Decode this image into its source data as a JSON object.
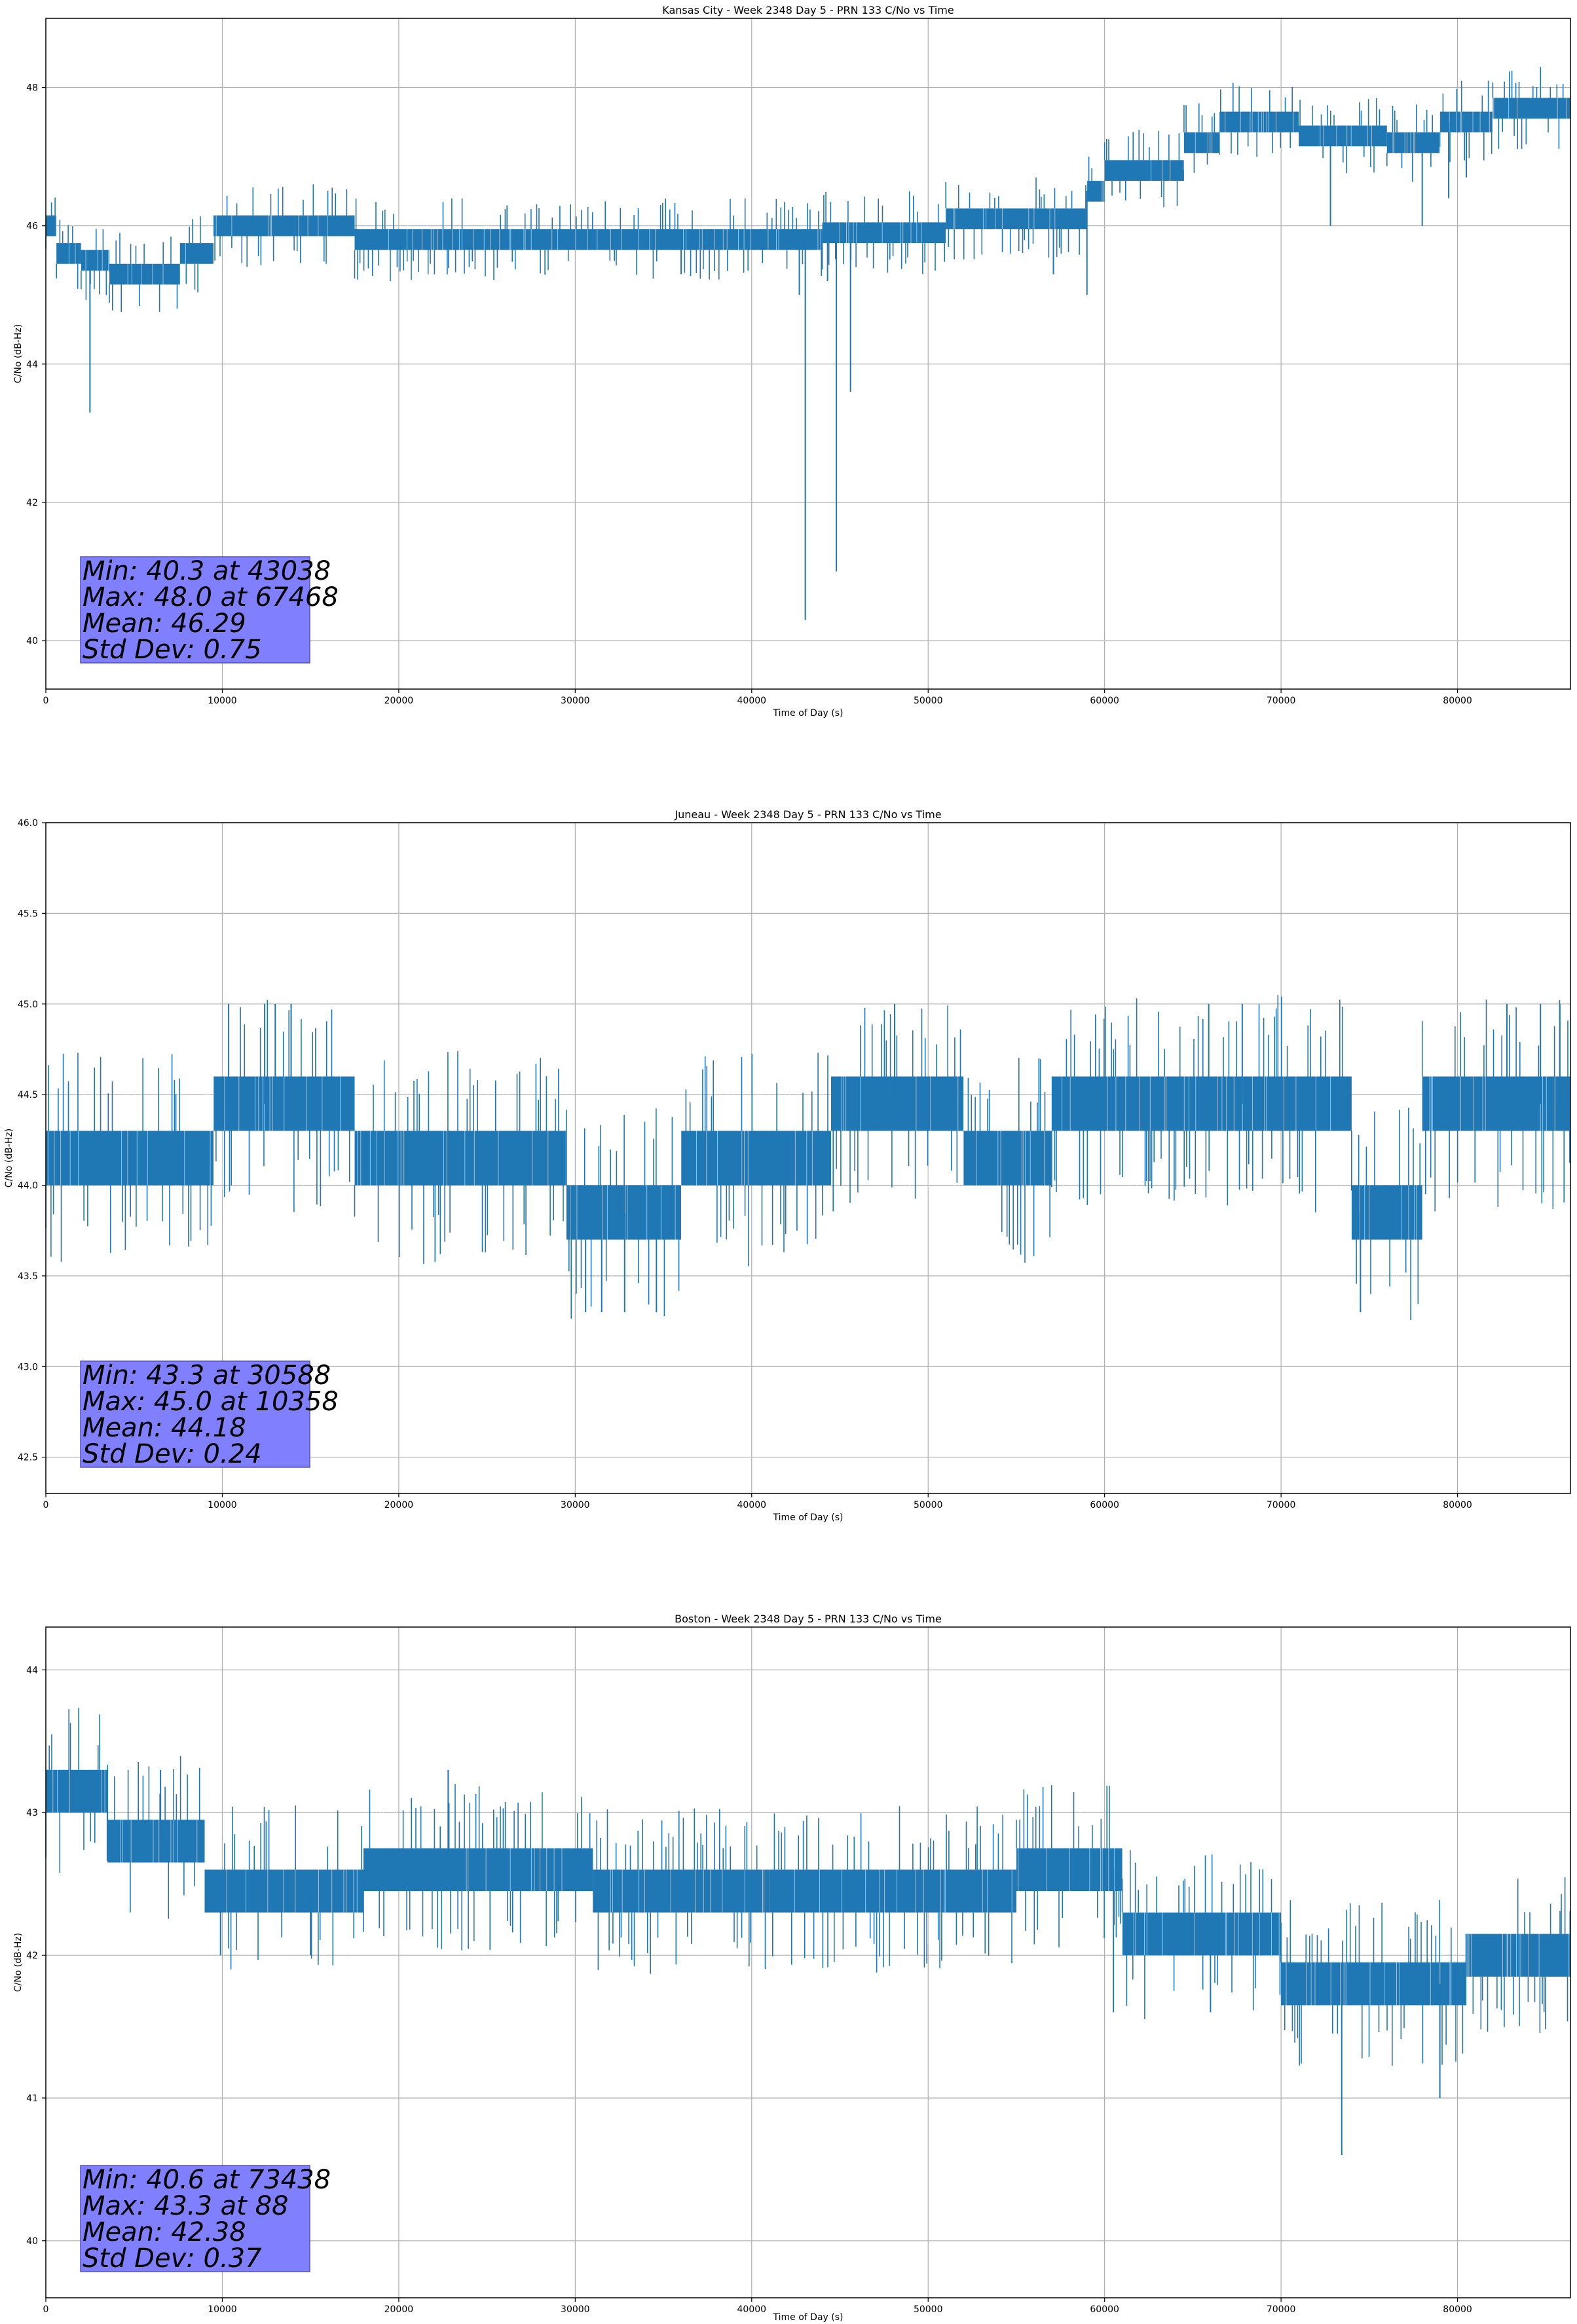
{
  "chart_data": [
    {
      "type": "line",
      "title": "Kansas City - Week 2348 Day 5 - PRN 133 C/No vs Time",
      "xlabel": "Time of Day (s)",
      "ylabel": "C/No (dB-Hz)",
      "xlim": [
        0,
        86400
      ],
      "ylim": [
        39.3,
        49.0
      ],
      "grid": true,
      "series_color": "#1f77b4",
      "xticks": [
        0,
        10000,
        20000,
        30000,
        40000,
        50000,
        60000,
        70000,
        80000
      ],
      "xtick_labels": [
        "0",
        "10000",
        "20000",
        "30000",
        "40000",
        "50000",
        "60000",
        "70000",
        "80000"
      ],
      "yticks": [
        40,
        42,
        44,
        46,
        48
      ],
      "ytick_labels": [
        "40",
        "42",
        "44",
        "46",
        "48"
      ],
      "levels": [
        {
          "x0": 0,
          "x1": 600,
          "y": 46.0
        },
        {
          "x0": 600,
          "x1": 2000,
          "y": 45.6
        },
        {
          "x0": 2000,
          "x1": 3600,
          "y": 45.5
        },
        {
          "x0": 3600,
          "x1": 7600,
          "y": 45.3
        },
        {
          "x0": 7600,
          "x1": 9500,
          "y": 45.6
        },
        {
          "x0": 9500,
          "x1": 17500,
          "y": 46.0
        },
        {
          "x0": 17500,
          "x1": 44000,
          "y": 45.8
        },
        {
          "x0": 44000,
          "x1": 51000,
          "y": 45.9
        },
        {
          "x0": 51000,
          "x1": 59000,
          "y": 46.1
        },
        {
          "x0": 59000,
          "x1": 60000,
          "y": 46.5
        },
        {
          "x0": 60000,
          "x1": 64500,
          "y": 46.8
        },
        {
          "x0": 64500,
          "x1": 66500,
          "y": 47.2
        },
        {
          "x0": 66500,
          "x1": 71000,
          "y": 47.5
        },
        {
          "x0": 71000,
          "x1": 76000,
          "y": 47.3
        },
        {
          "x0": 76000,
          "x1": 79000,
          "y": 47.2
        },
        {
          "x0": 79000,
          "x1": 82000,
          "y": 47.5
        },
        {
          "x0": 82000,
          "x1": 86400,
          "y": 47.7
        }
      ],
      "band": 0.3,
      "spikes": [
        {
          "x": 2500,
          "y": 43.3
        },
        {
          "x": 43038,
          "y": 40.3
        },
        {
          "x": 44800,
          "y": 41.0
        },
        {
          "x": 45600,
          "y": 43.6
        },
        {
          "x": 42700,
          "y": 45.0
        },
        {
          "x": 44300,
          "y": 45.2
        },
        {
          "x": 36000,
          "y": 45.3
        },
        {
          "x": 57100,
          "y": 45.3
        },
        {
          "x": 59000,
          "y": 45.0
        },
        {
          "x": 72800,
          "y": 46.0
        },
        {
          "x": 78000,
          "y": 46.0
        },
        {
          "x": 79500,
          "y": 46.4
        },
        {
          "x": 80500,
          "y": 46.7
        }
      ],
      "stats_box": [
        "Min: 40.3 at 43038",
        "Max: 48.0 at 67468",
        "Mean: 46.29",
        "Std Dev: 0.75"
      ],
      "seed": 11
    },
    {
      "type": "line",
      "title": "Juneau - Week 2348 Day 5 - PRN 133 C/No vs Time",
      "xlabel": "Time of Day (s)",
      "ylabel": "C/No (dB-Hz)",
      "xlim": [
        0,
        86400
      ],
      "ylim": [
        42.3,
        46.0
      ],
      "grid": true,
      "series_color": "#1f77b4",
      "xticks": [
        0,
        10000,
        20000,
        30000,
        40000,
        50000,
        60000,
        70000,
        80000
      ],
      "xtick_labels": [
        "0",
        "10000",
        "20000",
        "30000",
        "40000",
        "50000",
        "60000",
        "70000",
        "80000"
      ],
      "yticks": [
        42.5,
        43.0,
        43.5,
        44.0,
        44.5,
        45.0,
        45.5,
        46.0
      ],
      "ytick_labels": [
        "42.5",
        "43.0",
        "43.5",
        "44.0",
        "44.5",
        "45.0",
        "45.5",
        "46.0"
      ],
      "levels": [
        {
          "x0": 0,
          "x1": 9500,
          "y": 44.15
        },
        {
          "x0": 9500,
          "x1": 17500,
          "y": 44.45
        },
        {
          "x0": 17500,
          "x1": 29500,
          "y": 44.15
        },
        {
          "x0": 29500,
          "x1": 36000,
          "y": 43.85
        },
        {
          "x0": 36000,
          "x1": 44500,
          "y": 44.15
        },
        {
          "x0": 44500,
          "x1": 52000,
          "y": 44.45
        },
        {
          "x0": 52000,
          "x1": 57000,
          "y": 44.15
        },
        {
          "x0": 57000,
          "x1": 74000,
          "y": 44.45
        },
        {
          "x0": 74000,
          "x1": 78000,
          "y": 43.85
        },
        {
          "x0": 78000,
          "x1": 86400,
          "y": 44.45
        }
      ],
      "band": 0.3,
      "spikes": [
        {
          "x": 10358,
          "y": 45.0
        },
        {
          "x": 12400,
          "y": 45.0
        },
        {
          "x": 13000,
          "y": 45.0
        },
        {
          "x": 13900,
          "y": 45.0
        },
        {
          "x": 30588,
          "y": 43.3
        },
        {
          "x": 31500,
          "y": 43.3
        },
        {
          "x": 32800,
          "y": 43.3
        },
        {
          "x": 34600,
          "y": 43.3
        },
        {
          "x": 48100,
          "y": 45.0
        },
        {
          "x": 65900,
          "y": 45.0
        },
        {
          "x": 67800,
          "y": 45.0
        },
        {
          "x": 74500,
          "y": 43.3
        },
        {
          "x": 82800,
          "y": 45.0
        },
        {
          "x": 84700,
          "y": 45.0
        },
        {
          "x": 85800,
          "y": 45.0
        }
      ],
      "stats_box": [
        "Min: 43.3 at 30588",
        "Max: 45.0 at 10358",
        "Mean: 44.18",
        "Std Dev: 0.24"
      ],
      "seed": 23
    },
    {
      "type": "line",
      "title": "Boston - Week 2348 Day 5 - PRN 133 C/No vs Time",
      "xlabel": "Time of Day (s)",
      "ylabel": "C/No (dB-Hz)",
      "xlim": [
        0,
        86400
      ],
      "ylim": [
        39.6,
        44.3
      ],
      "grid": true,
      "series_color": "#1f77b4",
      "xticks": [
        0,
        10000,
        20000,
        30000,
        40000,
        50000,
        60000,
        70000,
        80000
      ],
      "xtick_labels": [
        "0",
        "10000",
        "20000",
        "30000",
        "40000",
        "50000",
        "60000",
        "70000",
        "80000"
      ],
      "yticks": [
        40,
        41,
        42,
        43,
        44
      ],
      "ytick_labels": [
        "40",
        "41",
        "42",
        "43",
        "44"
      ],
      "levels": [
        {
          "x0": 0,
          "x1": 3500,
          "y": 43.15
        },
        {
          "x0": 3500,
          "x1": 9000,
          "y": 42.8
        },
        {
          "x0": 9000,
          "x1": 18000,
          "y": 42.45
        },
        {
          "x0": 18000,
          "x1": 31000,
          "y": 42.6
        },
        {
          "x0": 31000,
          "x1": 41000,
          "y": 42.45
        },
        {
          "x0": 41000,
          "x1": 55000,
          "y": 42.45
        },
        {
          "x0": 55000,
          "x1": 61000,
          "y": 42.6
        },
        {
          "x0": 61000,
          "x1": 70000,
          "y": 42.15
        },
        {
          "x0": 70000,
          "x1": 80500,
          "y": 41.8
        },
        {
          "x0": 80500,
          "x1": 86400,
          "y": 42.0
        }
      ],
      "band": 0.3,
      "spikes": [
        {
          "x": 88,
          "y": 43.3
        },
        {
          "x": 6500,
          "y": 43.3
        },
        {
          "x": 22800,
          "y": 43.3
        },
        {
          "x": 73438,
          "y": 40.6
        },
        {
          "x": 79000,
          "y": 41.0
        },
        {
          "x": 66000,
          "y": 41.6
        },
        {
          "x": 60500,
          "y": 41.6
        },
        {
          "x": 9900,
          "y": 42.0
        },
        {
          "x": 15000,
          "y": 42.0
        }
      ],
      "stats_box": [
        "Min: 40.6 at 73438",
        "Max: 43.3 at 88",
        "Mean: 42.38",
        "Std Dev: 0.37"
      ],
      "seed": 37
    }
  ],
  "colors": {
    "series": "#1f77b4",
    "grid": "#b0b0b0",
    "stats_box_fill": "#8080ff",
    "axis": "#000000"
  }
}
